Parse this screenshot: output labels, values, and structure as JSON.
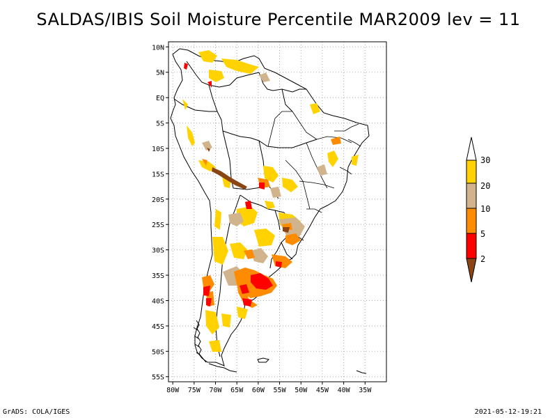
{
  "title": "SALDAS/IBIS Soil Moisture Percentile MAR2009 lev = 11",
  "footer": {
    "left": "GrADS: COLA/IGES",
    "right": "2021-05-12-19:21"
  },
  "map": {
    "lon_range": [
      -81,
      -30
    ],
    "lat_range": [
      -56,
      11
    ],
    "lat_ticks": [
      {
        "value": 10,
        "label": "10N"
      },
      {
        "value": 5,
        "label": "5N"
      },
      {
        "value": 0,
        "label": "EQ"
      },
      {
        "value": -5,
        "label": "5S"
      },
      {
        "value": -10,
        "label": "10S"
      },
      {
        "value": -15,
        "label": "15S"
      },
      {
        "value": -20,
        "label": "20S"
      },
      {
        "value": -25,
        "label": "25S"
      },
      {
        "value": -30,
        "label": "30S"
      },
      {
        "value": -35,
        "label": "35S"
      },
      {
        "value": -40,
        "label": "40S"
      },
      {
        "value": -45,
        "label": "45S"
      },
      {
        "value": -50,
        "label": "50S"
      },
      {
        "value": -55,
        "label": "55S"
      }
    ],
    "lon_ticks": [
      {
        "value": -80,
        "label": "80W"
      },
      {
        "value": -75,
        "label": "75W"
      },
      {
        "value": -70,
        "label": "70W"
      },
      {
        "value": -65,
        "label": "65W"
      },
      {
        "value": -60,
        "label": "60W"
      },
      {
        "value": -55,
        "label": "55W"
      },
      {
        "value": -50,
        "label": "50W"
      },
      {
        "value": -45,
        "label": "45W"
      },
      {
        "value": -40,
        "label": "40W"
      },
      {
        "value": -35,
        "label": "35W"
      }
    ],
    "grid": true
  },
  "legend": {
    "bins": [
      {
        "label": "",
        "color": "#ffffff"
      },
      {
        "label": "30",
        "color": "#ffd200"
      },
      {
        "label": "20",
        "color": "#d2b48c"
      },
      {
        "label": "10",
        "color": "#ff8c00"
      },
      {
        "label": "5",
        "color": "#ff0000"
      },
      {
        "label": "2",
        "color": "#8b4513"
      }
    ],
    "labels": [
      "30",
      "20",
      "10",
      "5",
      "2"
    ]
  },
  "colors": {
    "gold": "#ffd200",
    "tan": "#d2b48c",
    "orange": "#ff8c00",
    "red": "#ff0000",
    "brown": "#8b4513",
    "grid": "#aaaaaa"
  }
}
